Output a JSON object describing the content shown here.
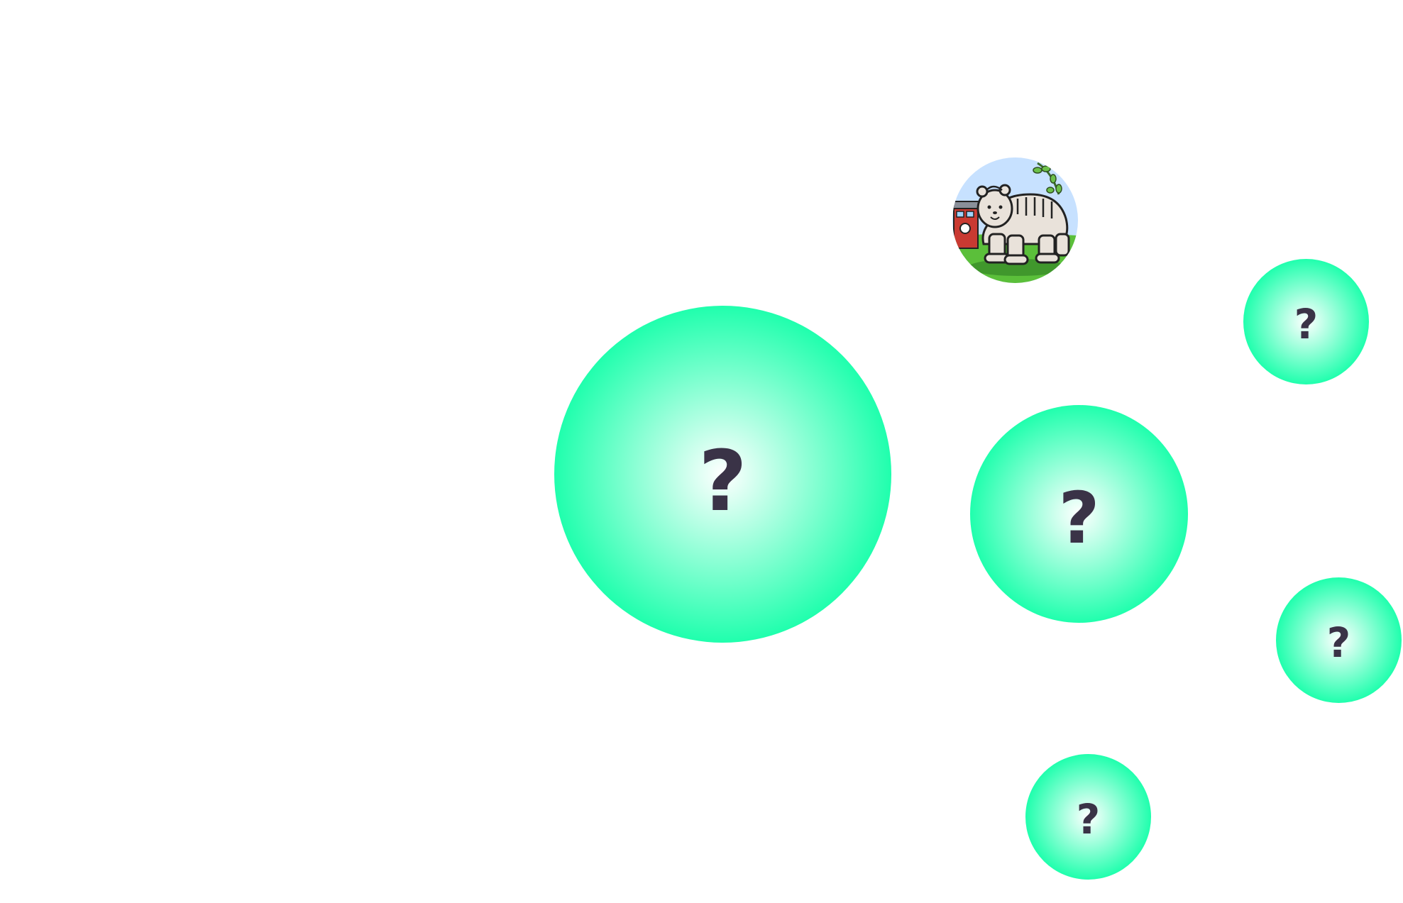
{
  "colors": {
    "bubble_edge": "#12ffa8",
    "bubble_center": "#ffffff",
    "glyph": "#3a3347",
    "sky": "#c7e1ff",
    "grass": "#5bbf3a"
  },
  "bubbles": [
    {
      "symbol": "?",
      "icon": "question-icon"
    },
    {
      "symbol": "?",
      "icon": "question-icon"
    },
    {
      "symbol": "?",
      "icon": "question-icon"
    },
    {
      "symbol": "?",
      "icon": "question-icon"
    },
    {
      "symbol": "?",
      "icon": "question-icon"
    }
  ],
  "avatar": {
    "icon": "bear-avatar-icon"
  }
}
